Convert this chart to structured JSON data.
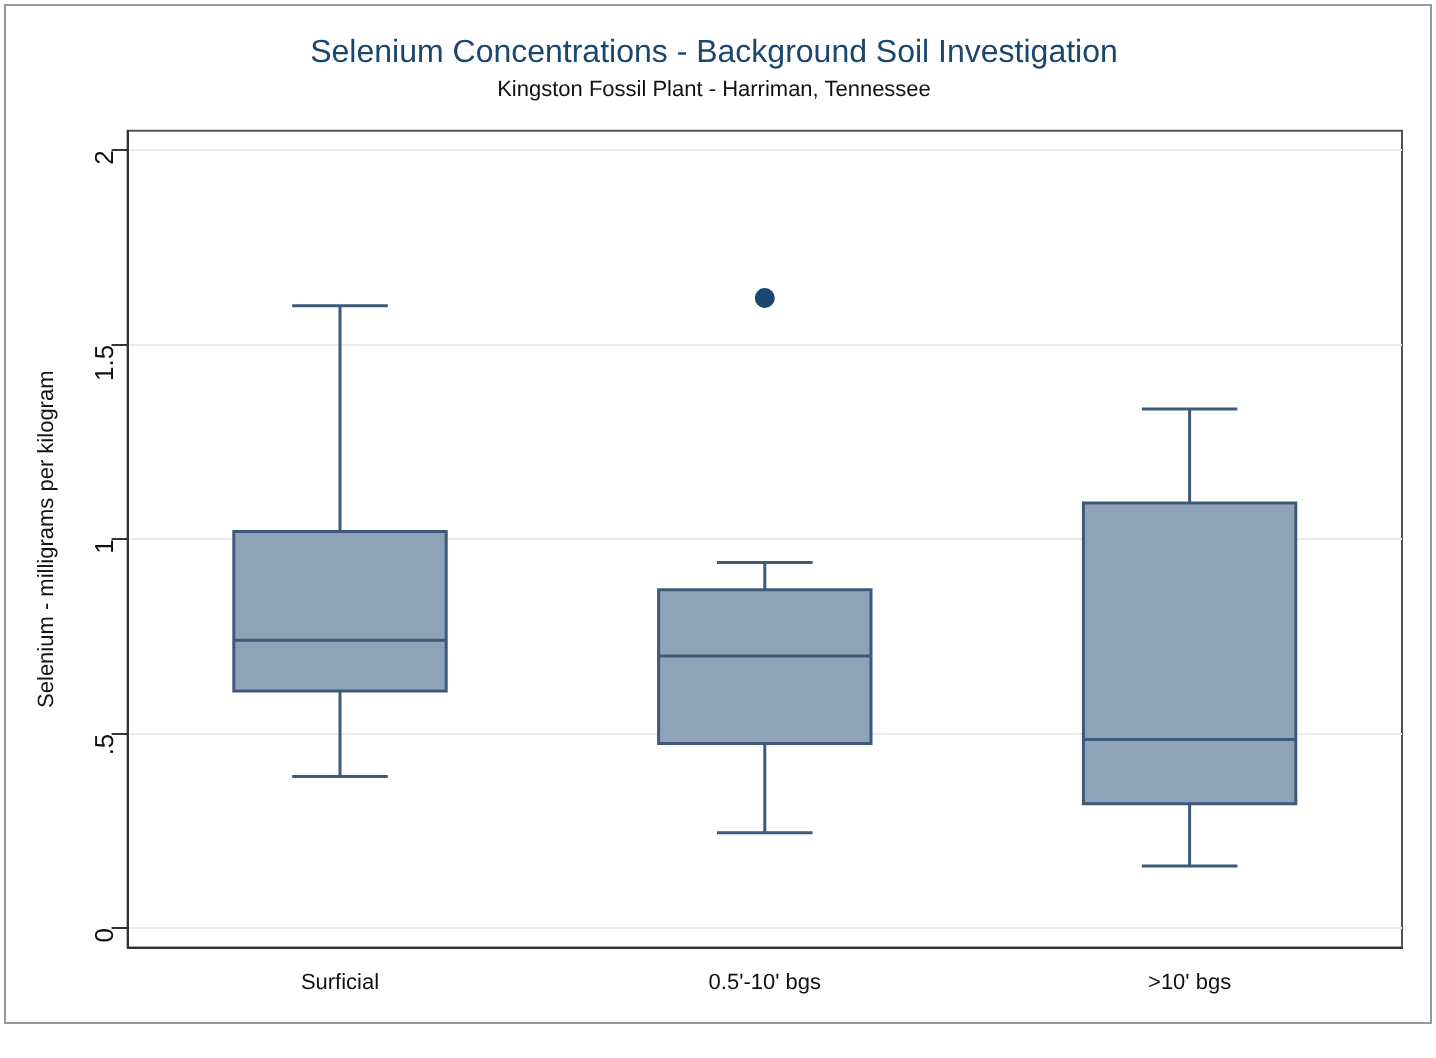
{
  "chart_data": {
    "type": "box",
    "title": "Selenium Concentrations - Background Soil Investigation",
    "subtitle": "Kingston Fossil Plant - Harriman, Tennessee",
    "ylabel": "Selenium - milligrams per kilogram",
    "categories": [
      "Surficial",
      "0.5'-10' bgs",
      ">10' bgs"
    ],
    "boxes": [
      {
        "low": 0.39,
        "q1": 0.61,
        "median": 0.74,
        "q3": 1.02,
        "high": 1.6
      },
      {
        "low": 0.245,
        "q1": 0.475,
        "median": 0.7,
        "q3": 0.87,
        "high": 0.94,
        "outliers": [
          1.62
        ]
      },
      {
        "low": 0.16,
        "q1": 0.32,
        "median": 0.485,
        "q3": 1.093,
        "high": 1.335
      }
    ],
    "color": "#8fa3b8",
    "ylim": [
      -0.05,
      2.05
    ],
    "yticks": [
      {
        "value": 0,
        "label": "0"
      },
      {
        "value": 0.5,
        "label": ".5"
      },
      {
        "value": 1,
        "label": "1"
      },
      {
        "value": 1.5,
        "label": "1.5"
      },
      {
        "value": 2,
        "label": "2"
      }
    ],
    "grid": "y",
    "legend": false
  }
}
